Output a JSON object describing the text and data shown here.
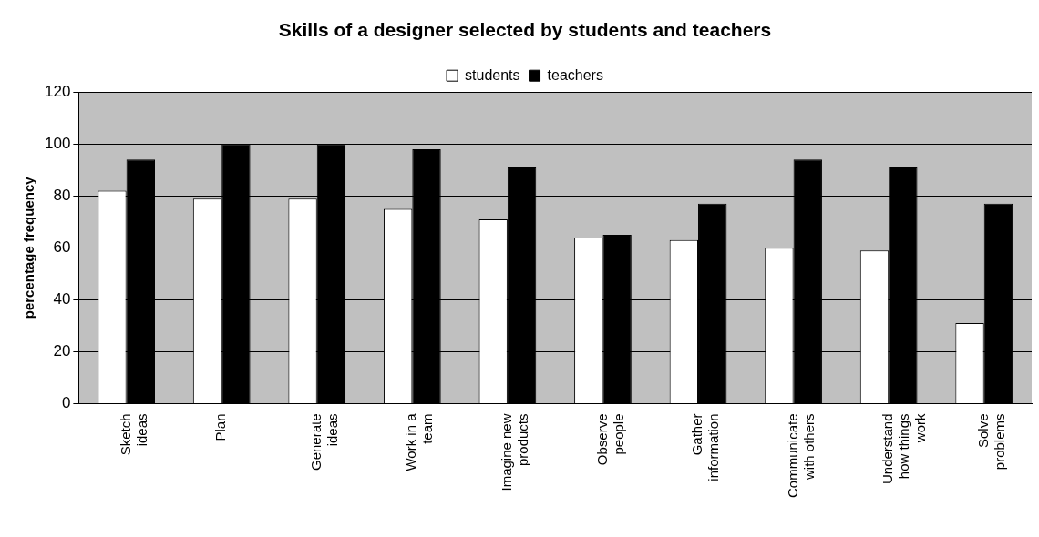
{
  "chart_data": {
    "type": "bar",
    "title": "Skills of a designer selected by students and teachers",
    "ylabel": "percentage frequency",
    "categories": [
      "Sketch ideas",
      "Plan",
      "Generate ideas",
      "Work in a team",
      "Imagine new products",
      "Observe people",
      "Gather information",
      "Communicate with others",
      "Understand how things work",
      "Solve problems"
    ],
    "series": [
      {
        "name": "students",
        "color": "#ffffff",
        "values": [
          82,
          79,
          79,
          75,
          71,
          64,
          63,
          60,
          59,
          31
        ]
      },
      {
        "name": "teachers",
        "color": "#000000",
        "values": [
          94,
          100,
          100,
          98,
          91,
          65,
          77,
          94,
          91,
          77
        ]
      }
    ],
    "ylim": [
      0,
      120
    ],
    "yticks": [
      0,
      20,
      40,
      60,
      80,
      100,
      120
    ],
    "grid": "y",
    "legend": "top"
  }
}
